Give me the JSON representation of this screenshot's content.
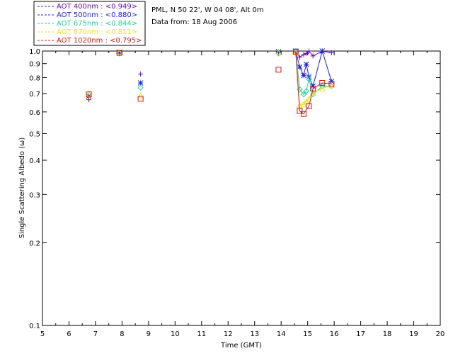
{
  "chart_data": {
    "type": "scatter",
    "xlabel": "Time (GMT)",
    "ylabel": "Single Scattering Albedo (ω)",
    "xlim": [
      5,
      20
    ],
    "ylim": [
      0.1,
      1.0
    ],
    "yscale": "log",
    "x_ticks": [
      "5",
      "6",
      "7",
      "8",
      "9",
      "10",
      "11",
      "12",
      "13",
      "14",
      "15",
      "16",
      "17",
      "18",
      "19",
      "20"
    ],
    "y_ticks": [
      {
        "v": 1.0,
        "label": "1.0"
      },
      {
        "v": 0.9,
        "label": "0.9"
      },
      {
        "v": 0.8,
        "label": "0.8"
      },
      {
        "v": 0.7,
        "label": "0.7"
      },
      {
        "v": 0.6,
        "label": "0.6"
      },
      {
        "v": 0.5,
        "label": "0.5"
      },
      {
        "v": 0.4,
        "label": "0.4"
      },
      {
        "v": 0.3,
        "label": "0.3"
      },
      {
        "v": 0.2,
        "label": "0.2"
      },
      {
        "v": 0.1,
        "label": "0.1"
      }
    ],
    "info_lines": [
      "PML, N 50 22', W 04 08', Alt 0m",
      "Data from: 18 Aug 2006"
    ],
    "series": [
      {
        "name": "AOT  400nm : <0.949>",
        "color": "#6a0ab0",
        "marker": "plus",
        "x": [
          6.75,
          7.9,
          8.7,
          13.9,
          14.55,
          14.7,
          14.85,
          14.95,
          15.05,
          15.2,
          15.55,
          15.9
        ],
        "y": [
          0.665,
          0.985,
          0.825,
          0.99,
          0.99,
          0.95,
          0.97,
          0.98,
          1.0,
          0.96,
          1.0,
          0.985
        ]
      },
      {
        "name": "AOT  500nm : <0.880>",
        "color": "#2020e0",
        "marker": "star",
        "x": [
          6.75,
          7.9,
          8.7,
          13.9,
          14.55,
          14.7,
          14.85,
          14.95,
          15.05,
          15.2,
          15.55,
          15.9
        ],
        "y": [
          0.685,
          0.99,
          0.765,
          0.995,
          1.0,
          0.875,
          0.815,
          0.895,
          0.805,
          0.745,
          1.0,
          0.775
        ]
      },
      {
        "name": "AOT  675nm : <0.844>",
        "color": "#20d0a0",
        "marker": "diamond",
        "x": [
          6.75,
          7.9,
          8.7,
          13.9,
          14.55,
          14.7,
          14.85,
          14.95,
          15.05,
          15.2,
          15.55,
          15.9
        ],
        "y": [
          0.695,
          0.98,
          0.735,
          0.98,
          1.0,
          0.725,
          0.695,
          0.715,
          0.79,
          0.695,
          0.745,
          0.745
        ]
      },
      {
        "name": "AOT  870nm : <0.811>",
        "color": "#f0e020",
        "marker": "triangle",
        "x": [
          6.75,
          7.9,
          8.7,
          13.9,
          14.55,
          14.7,
          14.85,
          14.95,
          15.05,
          15.2,
          15.55,
          15.9
        ],
        "y": [
          0.7,
          0.99,
          0.69,
          0.99,
          0.99,
          0.635,
          0.64,
          0.655,
          0.67,
          0.705,
          0.73,
          0.75
        ]
      },
      {
        "name": "AOT 1020nm : <0.795>",
        "color": "#d01818",
        "marker": "square",
        "x": [
          6.75,
          7.9,
          8.7,
          13.9,
          14.55,
          14.7,
          14.85,
          15.05,
          15.2,
          15.55,
          15.9
        ],
        "y": [
          0.695,
          0.985,
          0.67,
          0.855,
          0.995,
          0.605,
          0.59,
          0.63,
          0.73,
          0.765,
          0.76
        ]
      }
    ]
  }
}
